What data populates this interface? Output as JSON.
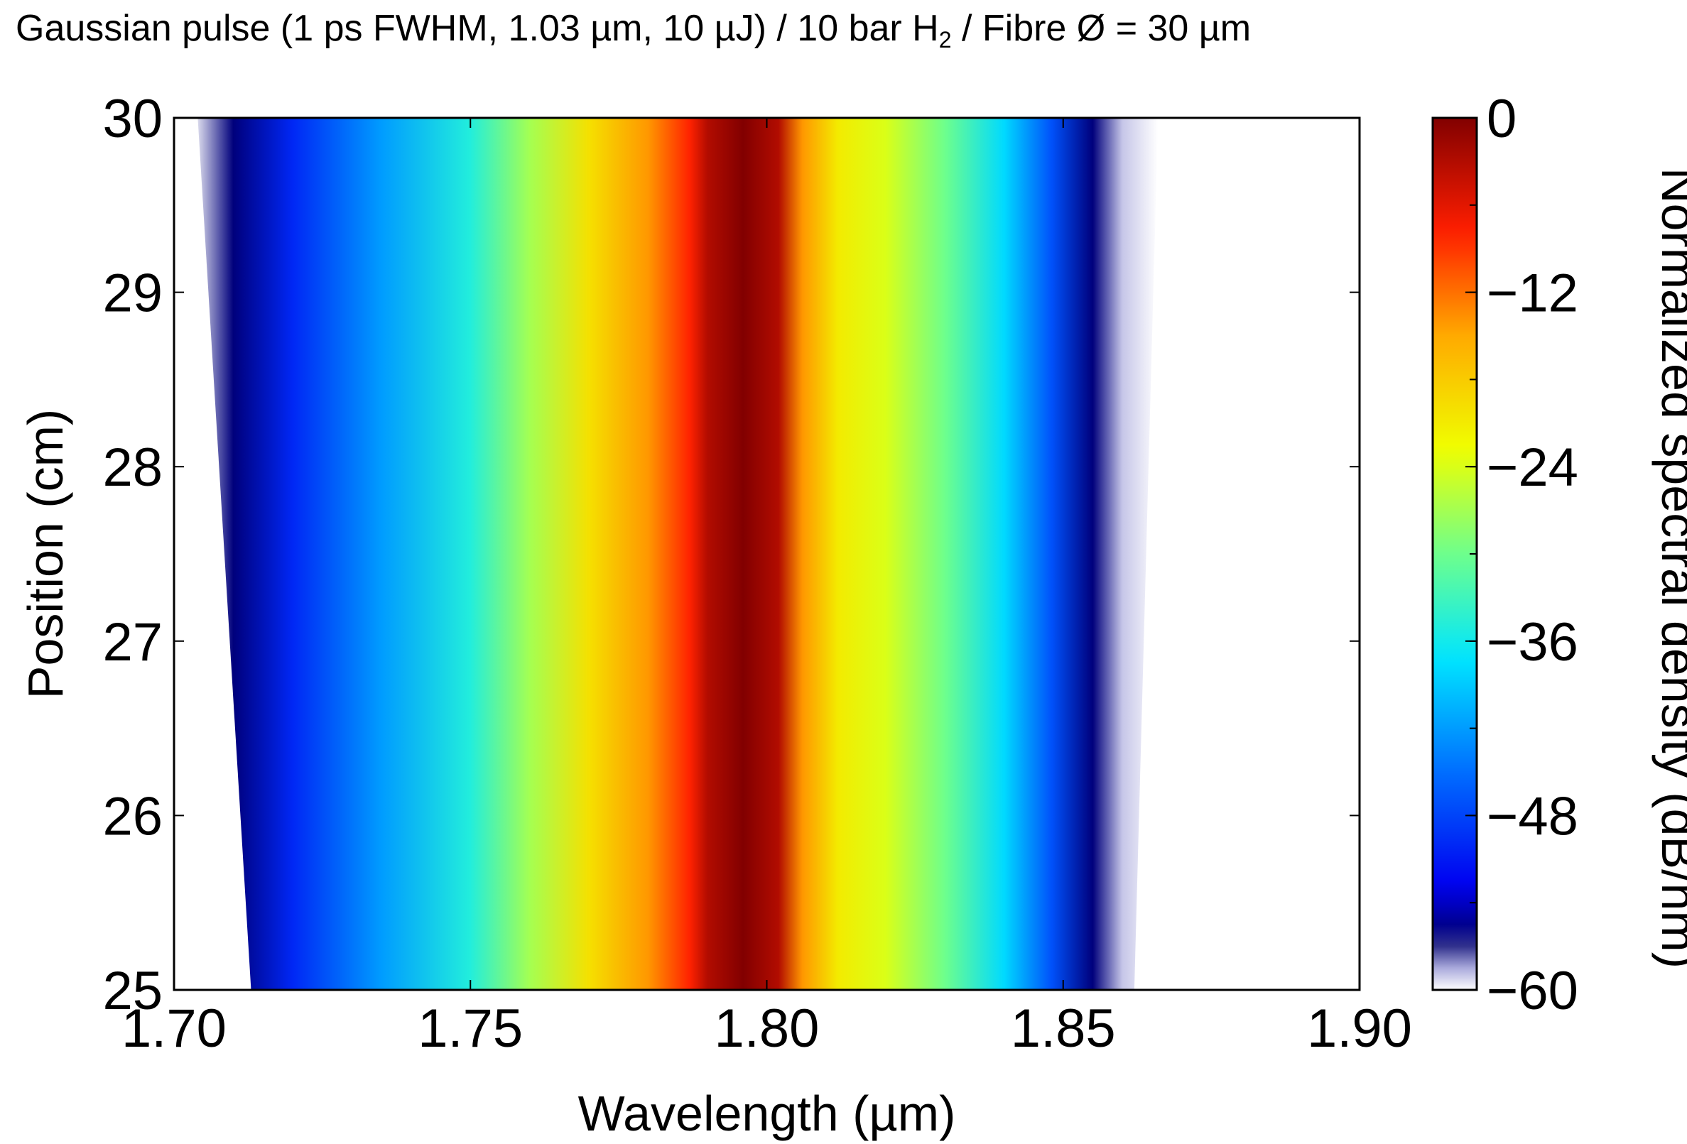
{
  "chart_data": {
    "type": "heatmap",
    "title_prefix": "Gaussian pulse (1 ps FWHM, 1.03 µm, 10 µJ) / 10 bar H",
    "title_sub": "2",
    "title_suffix": "  / Fibre Ø = 30 µm",
    "xlabel": "Wavelength (µm)",
    "ylabel": "Position (cm)",
    "colorbar_label": "Normalized spectral density (dB/nm)",
    "xlim": [
      1.7,
      1.9
    ],
    "ylim": [
      25,
      30
    ],
    "clim": [
      -60,
      0
    ],
    "colormap": "jet (white at minimum)",
    "x_ticks": [
      "1.70",
      "1.75",
      "1.80",
      "1.85",
      "1.90"
    ],
    "y_ticks": [
      "25",
      "26",
      "27",
      "28",
      "29",
      "30"
    ],
    "colorbar_ticks": [
      "0",
      "−12",
      "−24",
      "−36",
      "−48",
      "−60"
    ],
    "spectrum_profile": {
      "wavelength": [
        1.703,
        1.71,
        1.72,
        1.735,
        1.75,
        1.76,
        1.77,
        1.78,
        1.787,
        1.79,
        1.796,
        1.802,
        1.806,
        1.812,
        1.82,
        1.83,
        1.84,
        1.848,
        1.855,
        1.86,
        1.866
      ],
      "density_dB": [
        -60,
        -56,
        -50,
        -42,
        -35,
        -27,
        -20,
        -14,
        -8,
        -3,
        0,
        -3,
        -14,
        -21,
        -24,
        -30,
        -38,
        -47,
        -56,
        -59,
        -60
      ]
    },
    "spectral_edges": {
      "position": [
        25,
        30
      ],
      "short_edge": [
        1.717,
        1.708
      ],
      "long_edge": [
        1.858,
        1.862
      ]
    }
  }
}
